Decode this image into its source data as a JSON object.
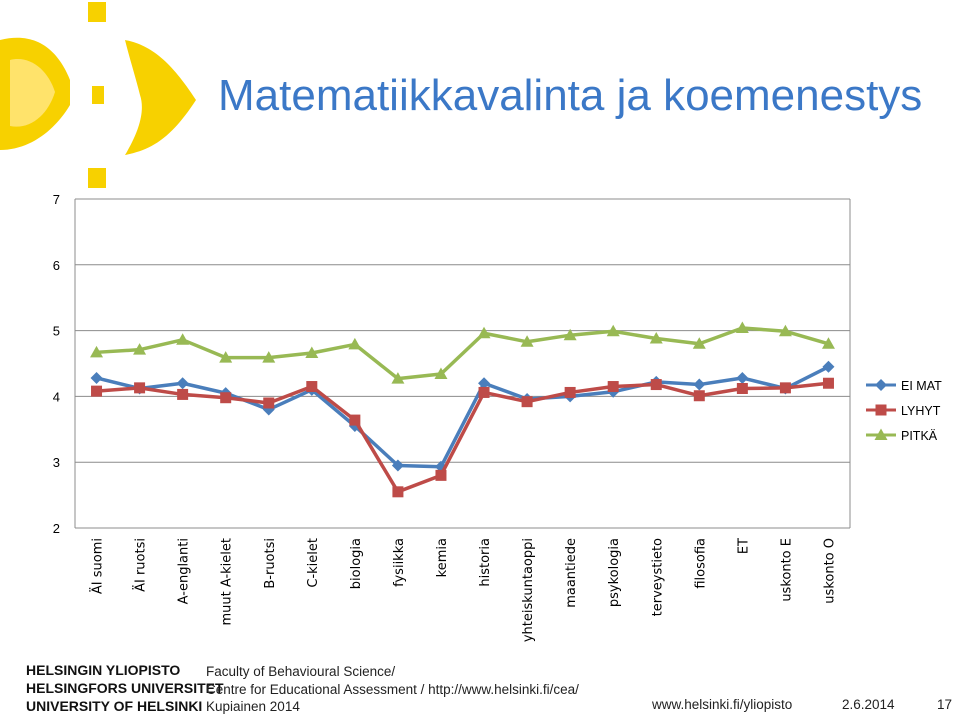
{
  "slide": {
    "title": "Matematiikkavalinta ja koemenestys"
  },
  "footer": {
    "university_lines": [
      "HELSINGIN YLIOPISTO",
      "HELSINGFORS UNIVERSITET",
      "UNIVERSITY OF HELSINKI"
    ],
    "faculty": "Faculty of Behavioural Science/",
    "centre": "Centre for Educational Assessment /  http://www.helsinki.fi/cea/",
    "author": "Kupiainen 2014",
    "website": "www.helsinki.fi/yliopisto",
    "date": "2.6.2014",
    "page_number": "17"
  },
  "colors": {
    "title": "#3b78c7",
    "logo": "#f7d100"
  },
  "chart_data": {
    "type": "line",
    "categories": [
      "ÄI suomi",
      "ÄI ruotsi",
      "A-englanti",
      "muut A-kielet",
      "B-ruotsi",
      "C-kielet",
      "biologia",
      "fysiikka",
      "kemia",
      "historia",
      "yhteiskuntaoppi",
      "maantiede",
      "psykologia",
      "terveystieto",
      "filosofia",
      "ET",
      "uskonto E",
      "uskonto O"
    ],
    "series": [
      {
        "name": "EI MAT",
        "color": "#4a7ebb",
        "marker": "diamond",
        "values": [
          4.28,
          4.12,
          4.2,
          4.05,
          3.8,
          4.1,
          3.55,
          2.95,
          2.93,
          4.2,
          3.96,
          4.0,
          4.07,
          4.22,
          4.18,
          4.28,
          4.12,
          4.45
        ]
      },
      {
        "name": "LYHYT",
        "color": "#be4b48",
        "marker": "square",
        "values": [
          4.08,
          4.13,
          4.03,
          3.98,
          3.9,
          4.15,
          3.64,
          2.55,
          2.8,
          4.06,
          3.92,
          4.06,
          4.15,
          4.18,
          4.01,
          4.12,
          4.13,
          4.2
        ]
      },
      {
        "name": "PITKÄ",
        "color": "#98b954",
        "marker": "triangle",
        "values": [
          4.67,
          4.71,
          4.86,
          4.59,
          4.59,
          4.66,
          4.79,
          4.27,
          4.34,
          4.96,
          4.83,
          4.93,
          4.99,
          4.88,
          4.8,
          5.04,
          4.99,
          4.8
        ]
      }
    ],
    "yticks": [
      "2",
      "3",
      "4",
      "5",
      "6",
      "7"
    ],
    "ylim": [
      2,
      7
    ],
    "grid": true,
    "legend_position": "right"
  }
}
